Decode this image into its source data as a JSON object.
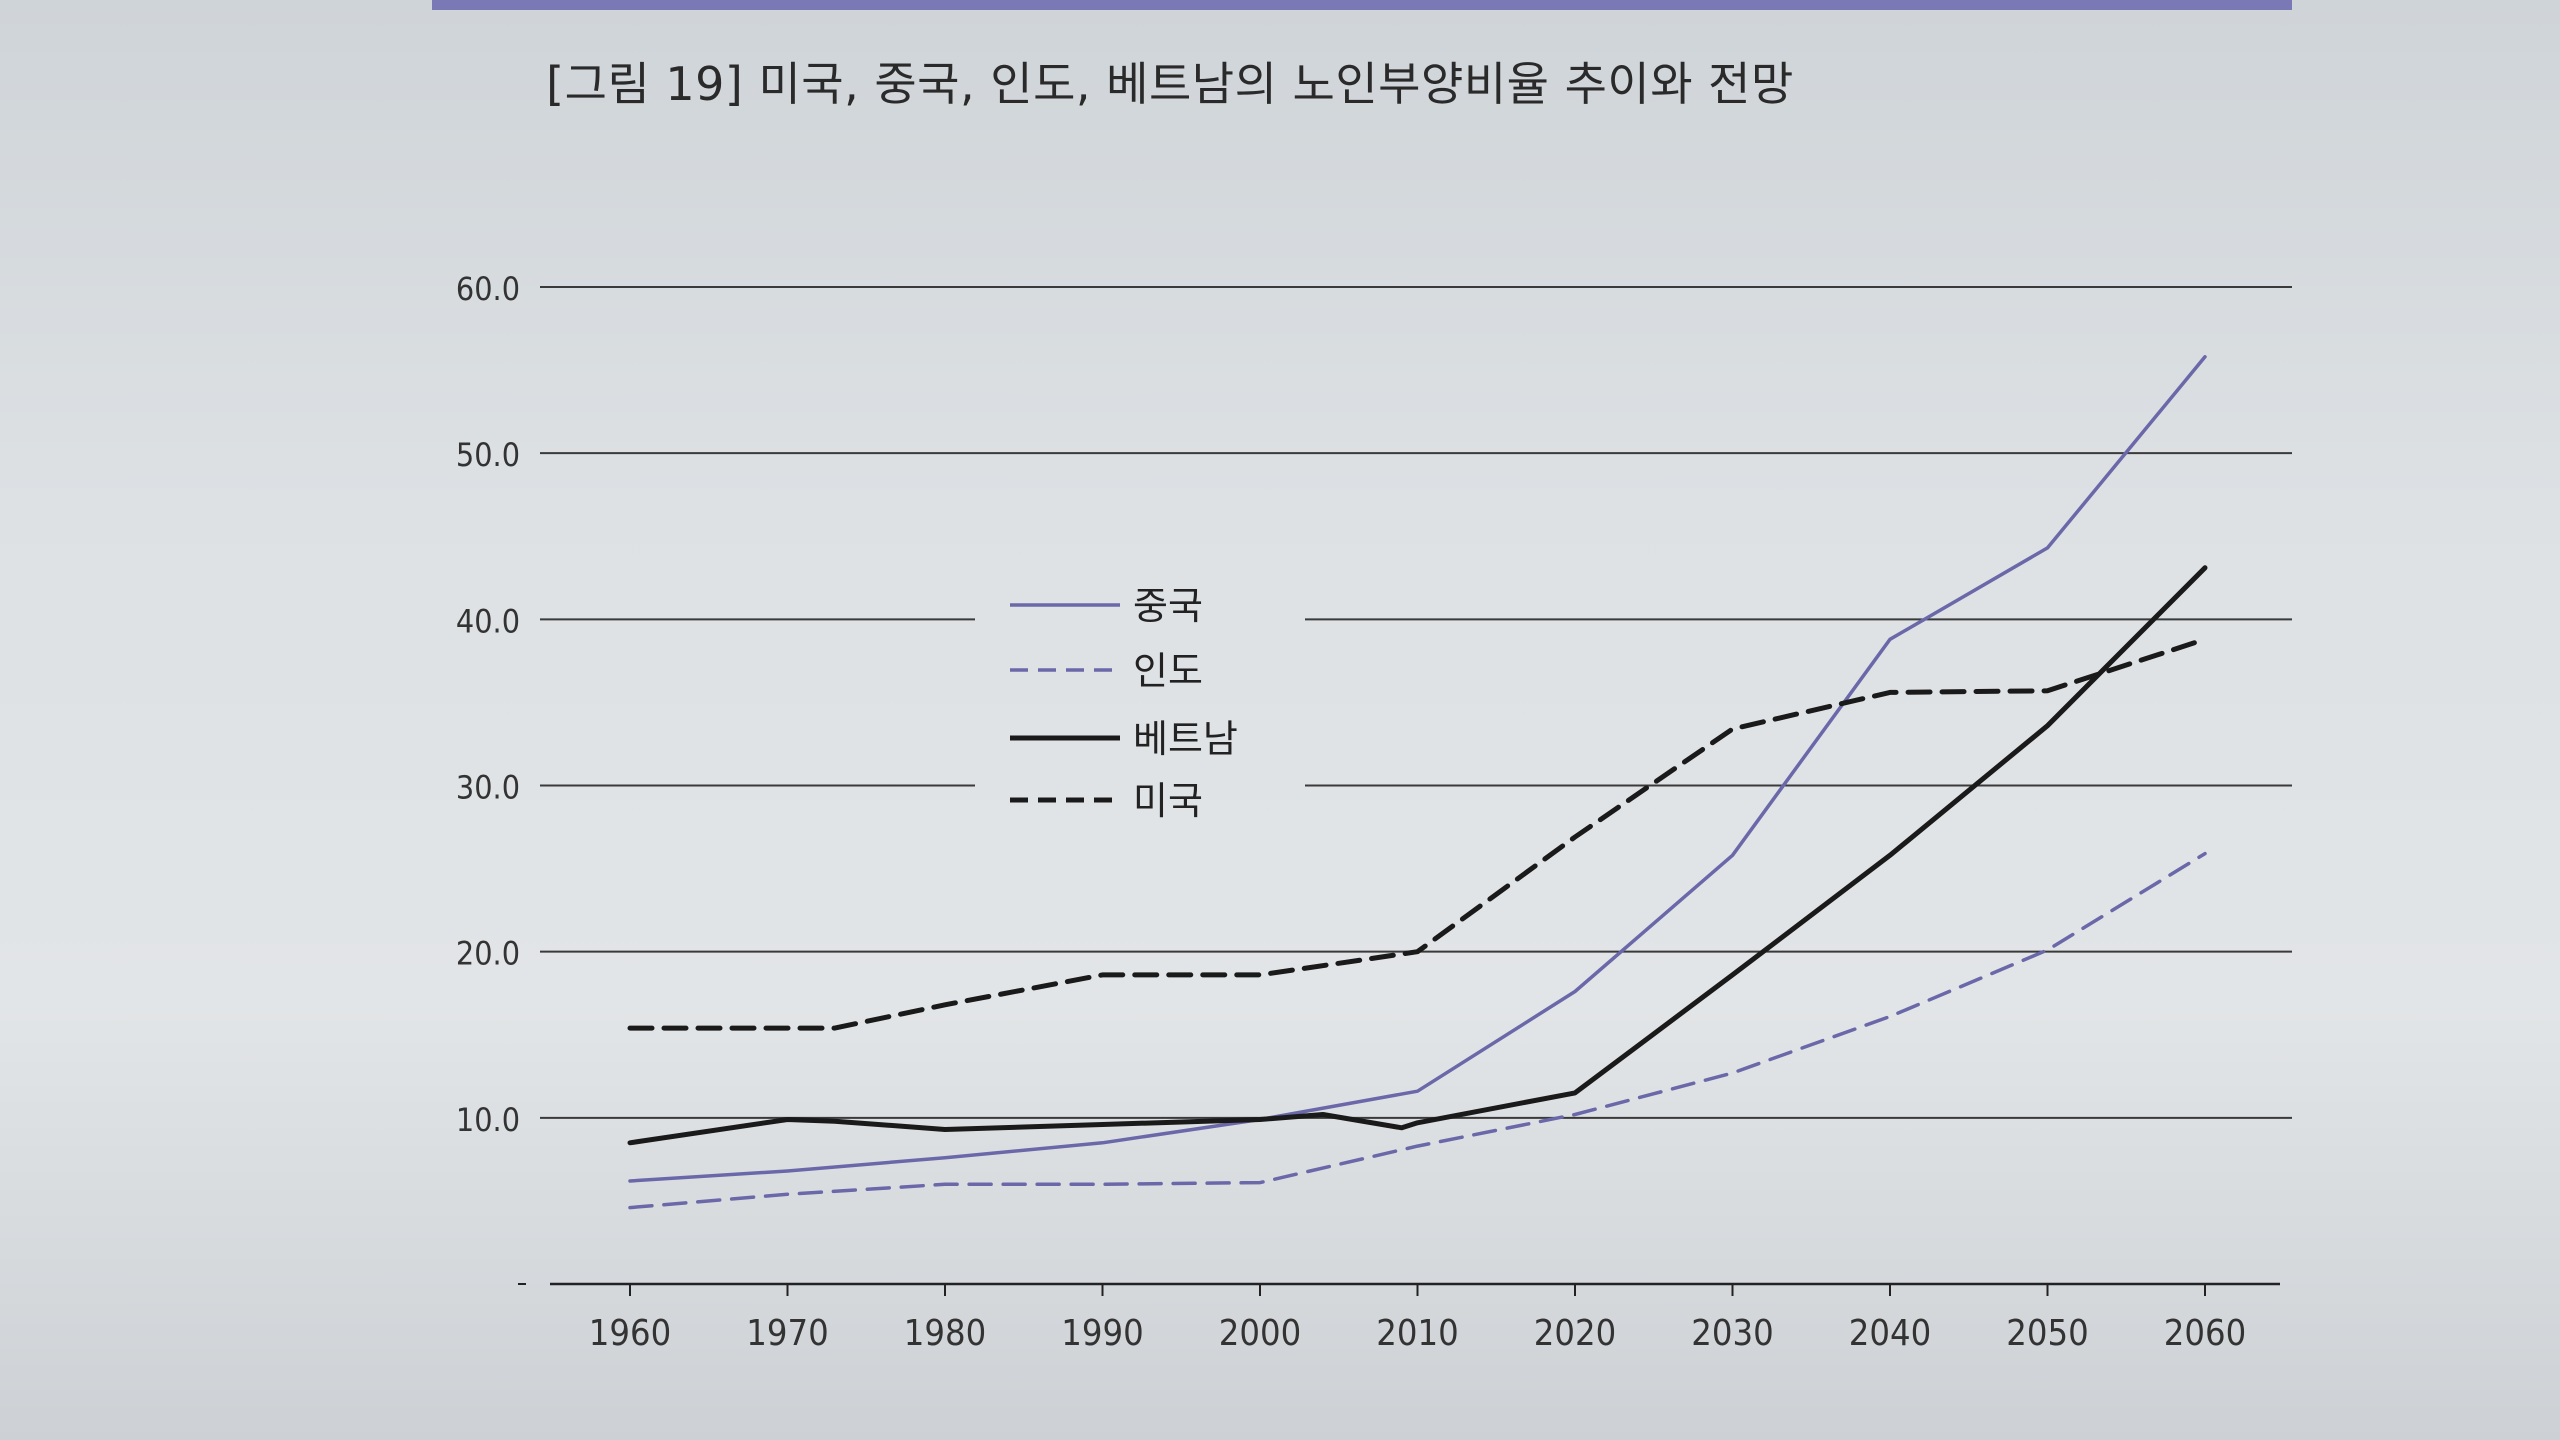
{
  "chart_data": {
    "type": "line",
    "title": "[그림 19] 미국, 중국, 인도, 베트남의 노인부양비율 추이와 전망",
    "xlabel": "",
    "ylabel": "",
    "x": [
      1960,
      1970,
      1980,
      1990,
      2000,
      2010,
      2020,
      2030,
      2040,
      2050,
      2060
    ],
    "ylim": [
      0,
      60
    ],
    "yticks": [
      "10.0",
      "20.0",
      "30.0",
      "40.0",
      "50.0",
      "60.0"
    ],
    "ytick_values": [
      10,
      20,
      30,
      40,
      50,
      60
    ],
    "grid": "horizontal",
    "legend_placement": "center-left",
    "series": [
      {
        "name": "중국",
        "color": "#6b68aa",
        "style": "solid",
        "x": [
          1960,
          1970,
          1980,
          1990,
          2000,
          2010,
          2020,
          2030,
          2040,
          2050,
          2060
        ],
        "values": [
          6.2,
          6.8,
          7.6,
          8.5,
          9.9,
          11.6,
          17.6,
          25.8,
          38.8,
          44.3,
          55.8
        ]
      },
      {
        "name": "인도",
        "color": "#6b68aa",
        "style": "dashed",
        "x": [
          1960,
          1970,
          1980,
          1990,
          2000,
          2010,
          2020,
          2030,
          2040,
          2050,
          2060
        ],
        "values": [
          4.6,
          5.4,
          6.0,
          6.0,
          6.1,
          8.3,
          10.2,
          12.7,
          16.1,
          20.1,
          25.9
        ]
      },
      {
        "name": "베트남",
        "color": "#1a1a1a",
        "style": "solid",
        "x": [
          1960,
          1970,
          1973,
          1980,
          1990,
          2000,
          2004,
          2009,
          2010,
          2020,
          2030,
          2040,
          2050,
          2060
        ],
        "values": [
          8.5,
          9.9,
          9.8,
          9.3,
          9.6,
          9.9,
          10.2,
          9.4,
          9.7,
          11.5,
          18.6,
          25.8,
          33.6,
          43.1
        ]
      },
      {
        "name": "미국",
        "color": "#1a1a1a",
        "style": "dashed",
        "x": [
          1960,
          1970,
          1973,
          1980,
          1990,
          2000,
          2010,
          2020,
          2030,
          2040,
          2050,
          2060
        ],
        "values": [
          15.4,
          15.4,
          15.4,
          16.8,
          18.6,
          18.6,
          20.0,
          26.9,
          33.4,
          35.6,
          35.7,
          38.8
        ]
      }
    ]
  }
}
